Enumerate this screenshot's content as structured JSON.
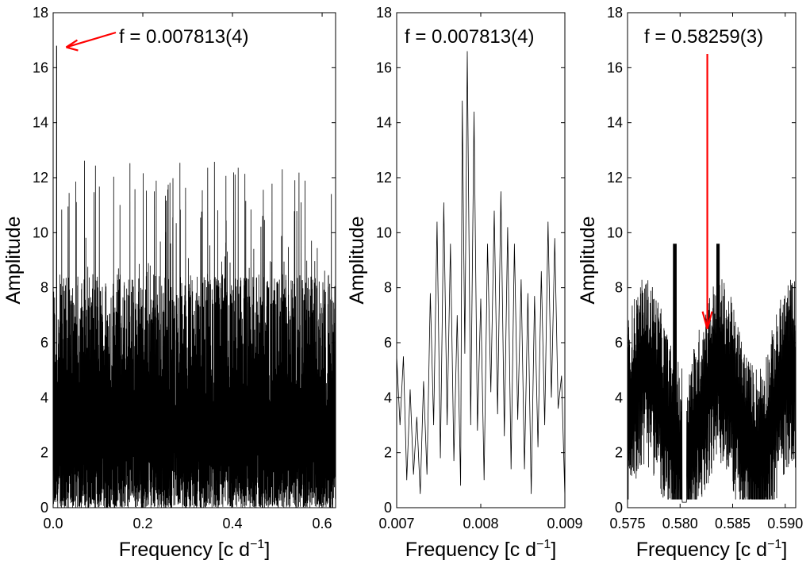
{
  "chart_data": [
    {
      "type": "line",
      "panel": "full",
      "xlabel": "Frequency [c d",
      "xlabel_sup": "−1",
      "xlabel_close": "]",
      "ylabel": "Amplitude",
      "xlim": [
        0,
        0.63
      ],
      "ylim": [
        0,
        18
      ],
      "xticks": [
        0,
        0.2,
        0.4,
        0.6
      ],
      "xtick_labels": [
        "0.0",
        "0.2",
        "0.4",
        "0.6"
      ],
      "yticks": [
        0,
        2,
        4,
        6,
        8,
        10,
        12,
        14,
        16,
        18
      ],
      "ytick_labels": [
        "0",
        "2",
        "4",
        "6",
        "8",
        "10",
        "12",
        "14",
        "16",
        "18"
      ],
      "annotation": "f = 0.007813(4)",
      "annotation_arrow_color": "#ff0000",
      "peak": {
        "x": 0.007813,
        "y": 16.8
      },
      "noise_envelope_max": 12.8,
      "series": [
        {
          "values_described": "dense periodogram noise between 0 and ~12.5, single dominant peak ~16.8 near zero"
        }
      ]
    },
    {
      "type": "line",
      "panel": "zoom-low",
      "xlabel": "Frequency [c d",
      "xlabel_sup": "−1",
      "xlabel_close": "]",
      "ylabel": "Amplitude",
      "xlim": [
        0.007,
        0.009
      ],
      "ylim": [
        0,
        18
      ],
      "xticks": [
        0.007,
        0.008,
        0.009
      ],
      "xtick_labels": [
        "0.007",
        "0.008",
        "0.009"
      ],
      "yticks": [
        0,
        2,
        4,
        6,
        8,
        10,
        12,
        14,
        16,
        18
      ],
      "ytick_labels": [
        "0",
        "2",
        "4",
        "6",
        "8",
        "10",
        "12",
        "14",
        "16",
        "18"
      ],
      "annotation": "f = 0.007813(4)",
      "x": [
        0.007,
        0.00704,
        0.00708,
        0.00712,
        0.00716,
        0.0072,
        0.00724,
        0.00728,
        0.00732,
        0.00736,
        0.0074,
        0.00744,
        0.00748,
        0.00752,
        0.00756,
        0.0076,
        0.00764,
        0.00768,
        0.00772,
        0.00776,
        0.00778,
        0.00781,
        0.00784,
        0.00788,
        0.00792,
        0.00796,
        0.008,
        0.00804,
        0.00808,
        0.00812,
        0.00816,
        0.0082,
        0.00824,
        0.00828,
        0.00832,
        0.00836,
        0.0084,
        0.00844,
        0.00848,
        0.00852,
        0.00856,
        0.0086,
        0.00864,
        0.00868,
        0.00872,
        0.00876,
        0.0088,
        0.00884,
        0.00888,
        0.00892,
        0.00896,
        0.009
      ],
      "y": [
        5.5,
        3.0,
        5.5,
        1.0,
        4.3,
        1.2,
        3.3,
        0.5,
        4.6,
        1.2,
        7.8,
        3.0,
        10.4,
        1.8,
        11.1,
        3.0,
        9.6,
        1.7,
        7.0,
        0.8,
        14.8,
        5.6,
        16.6,
        3.0,
        14.4,
        2.8,
        7.6,
        1.0,
        9.6,
        4.2,
        10.8,
        3.4,
        11.5,
        2.6,
        10.2,
        1.4,
        9.6,
        3.2,
        8.3,
        1.4,
        7.8,
        0.5,
        7.7,
        2.2,
        8.6,
        3.0,
        10.4,
        4.0,
        9.8,
        3.6,
        4.8,
        0.4
      ]
    },
    {
      "type": "line",
      "panel": "zoom-high",
      "xlabel": "Frequency [c d",
      "xlabel_sup": "−1",
      "xlabel_close": "]",
      "ylabel": "Amplitude",
      "xlim": [
        0.575,
        0.591
      ],
      "ylim": [
        0,
        18
      ],
      "xticks": [
        0.575,
        0.58,
        0.585,
        0.59
      ],
      "xtick_labels": [
        "0.575",
        "0.580",
        "0.585",
        "0.590"
      ],
      "yticks": [
        0,
        2,
        4,
        6,
        8,
        10,
        12,
        14,
        16,
        18
      ],
      "ytick_labels": [
        "0",
        "2",
        "4",
        "6",
        "8",
        "10",
        "12",
        "14",
        "16",
        "18"
      ],
      "annotation": "f = 0.58259(3)",
      "annotation_arrow_color": "#ff0000",
      "arrow_target": {
        "x": 0.58259,
        "y": 6.5
      },
      "series": [
        {
          "values_described": "noisy periodogram between ~0.3 and ~10, local maxima near 0.5795 (10.0) and 0.5835 (10.1)"
        }
      ]
    }
  ]
}
